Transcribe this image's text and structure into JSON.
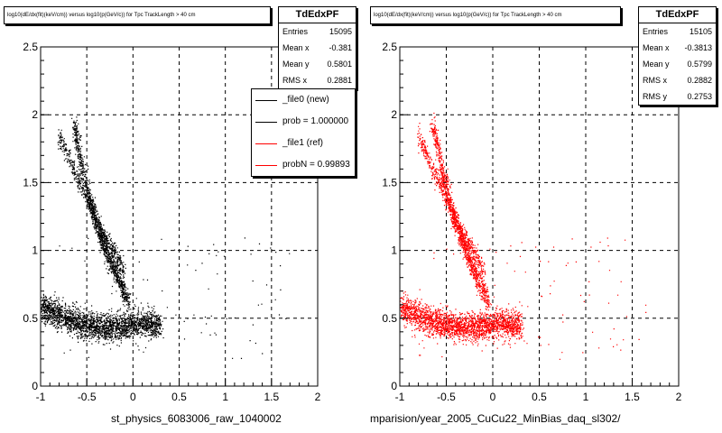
{
  "left_panel": {
    "title": "log10(dE/dx(fit)(keV/cm)) versus log10(p(GeV/c)) for Tpc TrackLength > 40 cm",
    "x_axis_title": "st_physics_6083006_raw_1040002",
    "stats": {
      "name": "TdEdxPF",
      "rows": [
        {
          "label": "Entries",
          "value": "15095"
        },
        {
          "label": "Mean x",
          "value": "-0.381"
        },
        {
          "label": "Mean y",
          "value": "0.5801"
        },
        {
          "label": "RMS x",
          "value": "0.2881"
        }
      ]
    },
    "legend": [
      {
        "label": "_file0 (new)",
        "color": "#000000"
      },
      {
        "label": "prob = 1.000000",
        "color": "#000000"
      },
      {
        "label": "_file1 (ref)",
        "color": "#ff0000"
      },
      {
        "label": "probN = 0.99893",
        "color": "#ff0000"
      }
    ]
  },
  "right_panel": {
    "title": "log10(dE/dx(fit)(keV/cm)) versus log10(p(GeV/c)) for Tpc TrackLength > 40 cm",
    "x_axis_title": "mparision/year_2005_CuCu22_MinBias_daq_sl302/",
    "stats": {
      "name": "TdEdxPF",
      "rows": [
        {
          "label": "Entries",
          "value": "15105"
        },
        {
          "label": "Mean x",
          "value": "-0.3813"
        },
        {
          "label": "Mean y",
          "value": "0.5799"
        },
        {
          "label": "RMS x",
          "value": "0.2882"
        },
        {
          "label": "RMS y",
          "value": "0.2753"
        }
      ]
    }
  },
  "footer_text": "",
  "chart_data": [
    {
      "type": "scatter",
      "color": "#000000",
      "xlim": [
        -1,
        2
      ],
      "ylim": [
        0,
        2.5
      ],
      "x_ticks": [
        "-1",
        "-0.5",
        "0",
        "0.5",
        "1",
        "1.5",
        "2"
      ],
      "y_ticks": [
        "0",
        "0.5",
        "1",
        "1.5",
        "2",
        "2.5"
      ],
      "grid": true,
      "xlabel": "st_physics_6083006_raw_1040002",
      "entries": 15095,
      "mean_x": -0.381,
      "mean_y": 0.5801,
      "rms_x": 0.2881,
      "bands": [
        {
          "x": [
            -1.0,
            -0.8,
            -0.6,
            -0.4,
            -0.25,
            -0.1,
            0.0,
            0.1,
            0.3
          ],
          "y": [
            0.58,
            0.52,
            0.47,
            0.44,
            0.43,
            0.44,
            0.46,
            0.46,
            0.45
          ]
        },
        {
          "x": [
            -0.65,
            -0.55,
            -0.45,
            -0.35,
            -0.25,
            -0.15,
            -0.05
          ],
          "y": [
            1.95,
            1.6,
            1.32,
            1.1,
            0.92,
            0.78,
            0.62
          ]
        },
        {
          "x": [
            -0.8,
            -0.65,
            -0.5,
            -0.35,
            -0.2,
            -0.1
          ],
          "y": [
            1.85,
            1.6,
            1.38,
            1.15,
            0.98,
            0.85
          ]
        }
      ]
    },
    {
      "type": "scatter",
      "color": "#ff0000",
      "xlim": [
        -1,
        2
      ],
      "ylim": [
        0,
        2.5
      ],
      "x_ticks": [
        "-1",
        "-0.5",
        "0",
        "0.5",
        "1",
        "1.5",
        "2"
      ],
      "y_ticks": [
        "0",
        "0.5",
        "1",
        "1.5",
        "2",
        "2.5"
      ],
      "grid": true,
      "xlabel": "mparision/year_2005_CuCu22_MinBias_daq_sl302/",
      "entries": 15105,
      "mean_x": -0.3813,
      "mean_y": 0.5799,
      "rms_x": 0.2882,
      "rms_y": 0.2753,
      "bands": [
        {
          "x": [
            -1.0,
            -0.8,
            -0.6,
            -0.4,
            -0.25,
            -0.1,
            0.0,
            0.1,
            0.3
          ],
          "y": [
            0.58,
            0.52,
            0.47,
            0.44,
            0.43,
            0.44,
            0.46,
            0.46,
            0.45
          ]
        },
        {
          "x": [
            -0.65,
            -0.55,
            -0.45,
            -0.35,
            -0.25,
            -0.15,
            -0.05
          ],
          "y": [
            1.95,
            1.6,
            1.32,
            1.1,
            0.92,
            0.78,
            0.62
          ]
        },
        {
          "x": [
            -0.8,
            -0.65,
            -0.5,
            -0.35,
            -0.2,
            -0.1
          ],
          "y": [
            1.85,
            1.6,
            1.38,
            1.15,
            0.98,
            0.85
          ]
        }
      ]
    }
  ]
}
